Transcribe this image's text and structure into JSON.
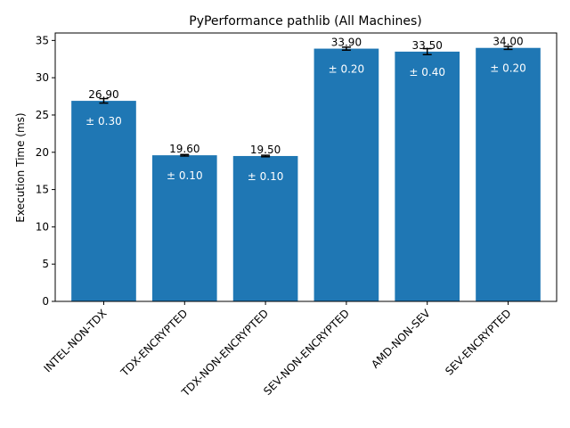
{
  "chart_data": {
    "type": "bar",
    "title": "PyPerformance pathlib (All Machines)",
    "xlabel": "",
    "ylabel": "Execution Time (ms)",
    "ylim": [
      0,
      36
    ],
    "yticks": [
      0,
      5,
      10,
      15,
      20,
      25,
      30,
      35
    ],
    "grid": false,
    "categories": [
      "INTEL-NON-TDX",
      "TDX-ENCRYPTED",
      "TDX-NON-ENCRYPTED",
      "SEV-NON-ENCRYPTED",
      "AMD-NON-SEV",
      "SEV-ENCRYPTED"
    ],
    "values": [
      26.9,
      19.6,
      19.5,
      33.9,
      33.5,
      34.0
    ],
    "errors": [
      0.3,
      0.1,
      0.1,
      0.2,
      0.4,
      0.2
    ],
    "value_labels": [
      "26.90",
      "19.60",
      "19.50",
      "33.90",
      "33.50",
      "34.00"
    ],
    "error_labels": [
      "± 0.30",
      "± 0.10",
      "± 0.10",
      "± 0.20",
      "± 0.40",
      "± 0.20"
    ],
    "bar_color": "#1f77b4",
    "errorbar_color": "#000000",
    "error_text_color": "#ffffff"
  }
}
